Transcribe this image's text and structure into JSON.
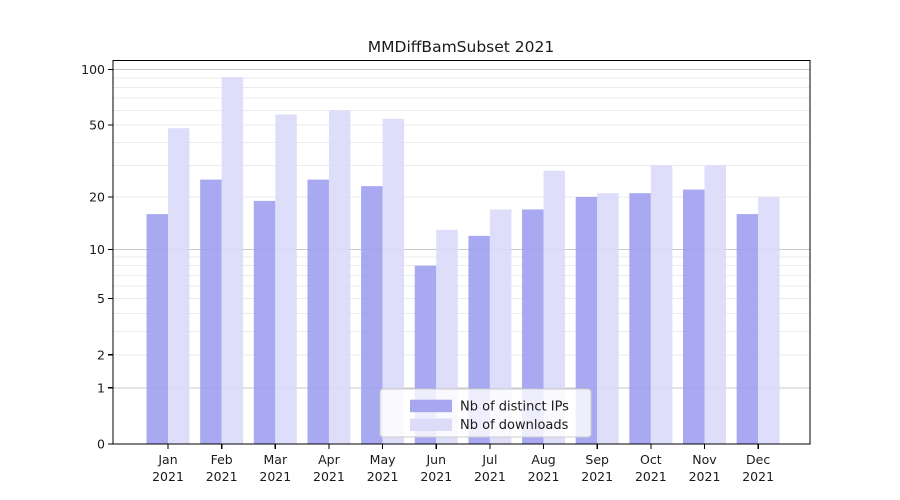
{
  "window": {
    "title": "MMDiffBamSubset 2021"
  },
  "chart_data": {
    "type": "bar",
    "title": "MMDiffBamSubset 2021",
    "xlabel": "",
    "ylabel": "",
    "year": "2021",
    "categories": [
      "Jan",
      "Feb",
      "Mar",
      "Apr",
      "May",
      "Jun",
      "Jul",
      "Aug",
      "Sep",
      "Oct",
      "Nov",
      "Dec"
    ],
    "series": [
      {
        "name": "Nb of distinct IPs",
        "values": [
          16,
          25,
          19,
          25,
          23,
          8,
          12,
          17,
          20,
          21,
          22,
          16
        ]
      },
      {
        "name": "Nb of downloads",
        "values": [
          48,
          91,
          57,
          60,
          54,
          13,
          17,
          28,
          21,
          30,
          30,
          20
        ]
      }
    ],
    "yticks": [
      0,
      1,
      2,
      5,
      10,
      20,
      50,
      100
    ],
    "minor_gridlines": [
      2,
      3,
      4,
      5,
      6,
      7,
      8,
      9,
      20,
      30,
      40,
      50,
      60,
      70,
      80,
      90
    ],
    "major_gridlines": [
      1,
      10,
      100
    ],
    "scale": "log1p",
    "ylim": [
      0,
      111
    ],
    "grid": true,
    "legend_position": "lower center",
    "legend_items": [
      {
        "label": "Nb of distinct IPs",
        "swatch": "#a7a7f0"
      },
      {
        "label": "Nb of downloads",
        "swatch": "#dcdcf9"
      }
    ]
  },
  "colors": {
    "bar_ips": "#9d9df0",
    "bar_downloads": "#d9d9f9",
    "grid_minor": "#ebebeb",
    "grid_major": "#c9c9c9",
    "spine": "#000000",
    "text": "#1a1a1a",
    "legend_border": "#cccccc",
    "legend_bg": "#ffffff"
  }
}
